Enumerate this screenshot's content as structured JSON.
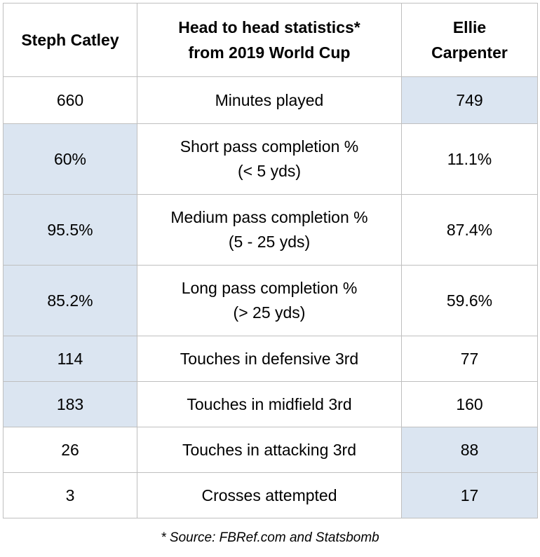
{
  "chart_data": {
    "type": "table",
    "header": {
      "left": "Steph Catley",
      "middle_lines": [
        "Head to head statistics*",
        "from 2019 World Cup"
      ],
      "right_lines": [
        "Ellie",
        "Carpenter"
      ]
    },
    "rows": [
      {
        "label_lines": [
          "Minutes played"
        ],
        "left": "660",
        "right": "749",
        "highlight": "right"
      },
      {
        "label_lines": [
          "Short pass completion %",
          "(< 5 yds)"
        ],
        "left": "60%",
        "right": "11.1%",
        "highlight": "left"
      },
      {
        "label_lines": [
          "Medium pass completion %",
          "(5 - 25 yds)"
        ],
        "left": "95.5%",
        "right": "87.4%",
        "highlight": "left"
      },
      {
        "label_lines": [
          "Long pass completion %",
          "(> 25 yds)"
        ],
        "left": "85.2%",
        "right": "59.6%",
        "highlight": "left"
      },
      {
        "label_lines": [
          "Touches in defensive 3rd"
        ],
        "left": "114",
        "right": "77",
        "highlight": "left"
      },
      {
        "label_lines": [
          "Touches in midfield 3rd"
        ],
        "left": "183",
        "right": "160",
        "highlight": "left"
      },
      {
        "label_lines": [
          "Touches in attacking 3rd"
        ],
        "left": "26",
        "right": "88",
        "highlight": "right"
      },
      {
        "label_lines": [
          "Crosses attempted"
        ],
        "left": "3",
        "right": "17",
        "highlight": "right"
      }
    ],
    "highlight_color": "#dbe5f1",
    "border_color": "#bfbfbf"
  },
  "footnote": "* Source: FBRef.com and Statsbomb"
}
